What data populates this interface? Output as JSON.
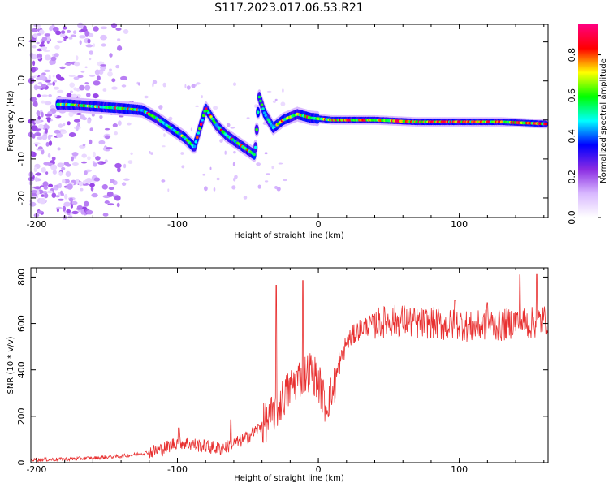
{
  "title": "S117.2023.017.06.53.R21",
  "chart_data": [
    {
      "type": "heatmap",
      "xlabel": "Height of straight line (km)",
      "ylabel": "Frequency (Hz)",
      "xlim": [
        -204,
        163
      ],
      "ylim": [
        -25,
        24.5
      ],
      "xticks": [
        "-200",
        "-100",
        "0",
        "100"
      ],
      "yticks": [
        "-20",
        "-10",
        "0",
        "10",
        "20"
      ],
      "colorbar": {
        "label": "Normalized spectral amplitude",
        "range": [
          0.0,
          0.95
        ],
        "ticks": [
          "0.0",
          "0.2",
          "0.4",
          "0.6",
          "0.8"
        ],
        "colors": [
          "#ffffff",
          "#d8b8ff",
          "#8a2be2",
          "#0000ff",
          "#00ffff",
          "#00ff00",
          "#ffff00",
          "#ff0000",
          "#ff0080"
        ]
      },
      "ridge": [
        [
          -180,
          4
        ],
        [
          -160,
          3.5
        ],
        [
          -140,
          3
        ],
        [
          -125,
          2.5
        ],
        [
          -115,
          0.5
        ],
        [
          -105,
          -2
        ],
        [
          -95,
          -4.5
        ],
        [
          -88,
          -7
        ],
        [
          -80,
          3
        ],
        [
          -72,
          -1.5
        ],
        [
          -65,
          -4
        ],
        [
          -55,
          -6.5
        ],
        [
          -45,
          -9
        ],
        [
          -42,
          6
        ],
        [
          -38,
          1.5
        ],
        [
          -32,
          -2
        ],
        [
          -25,
          0
        ],
        [
          -15,
          1.5
        ],
        [
          -5,
          0.5
        ],
        [
          10,
          0
        ],
        [
          40,
          0
        ],
        [
          70,
          -0.5
        ],
        [
          100,
          -0.5
        ],
        [
          130,
          -0.5
        ],
        [
          162,
          -1
        ]
      ]
    },
    {
      "type": "line",
      "xlabel": "Height of straight line (km)",
      "ylabel": "SNR (10 * v/v)",
      "xlim": [
        -204,
        163
      ],
      "ylim": [
        0,
        840
      ],
      "xticks": [
        "-200",
        "-100",
        "0",
        "100"
      ],
      "yticks": [
        "0",
        "200",
        "400",
        "600",
        "800"
      ],
      "color": "#e83030",
      "x": [
        -204,
        -180,
        -160,
        -140,
        -130,
        -120,
        -110,
        -100,
        -90,
        -80,
        -70,
        -60,
        -50,
        -40,
        -30,
        -25,
        -20,
        -15,
        -10,
        -5,
        0,
        5,
        10,
        15,
        20,
        30,
        40,
        50,
        60,
        70,
        80,
        90,
        100,
        110,
        120,
        130,
        140,
        150,
        163
      ],
      "y": [
        12,
        15,
        20,
        28,
        35,
        45,
        60,
        90,
        80,
        70,
        60,
        80,
        110,
        160,
        220,
        280,
        320,
        360,
        380,
        400,
        350,
        250,
        300,
        420,
        520,
        580,
        600,
        610,
        615,
        600,
        605,
        590,
        600,
        580,
        600,
        590,
        610,
        600,
        620
      ],
      "spikes": [
        [
          -30,
          765
        ],
        [
          -11,
          785
        ],
        [
          -62,
          185
        ],
        [
          -99,
          150
        ],
        [
          143,
          810
        ],
        [
          155,
          815
        ],
        [
          97,
          700
        ],
        [
          120,
          690
        ]
      ]
    }
  ]
}
